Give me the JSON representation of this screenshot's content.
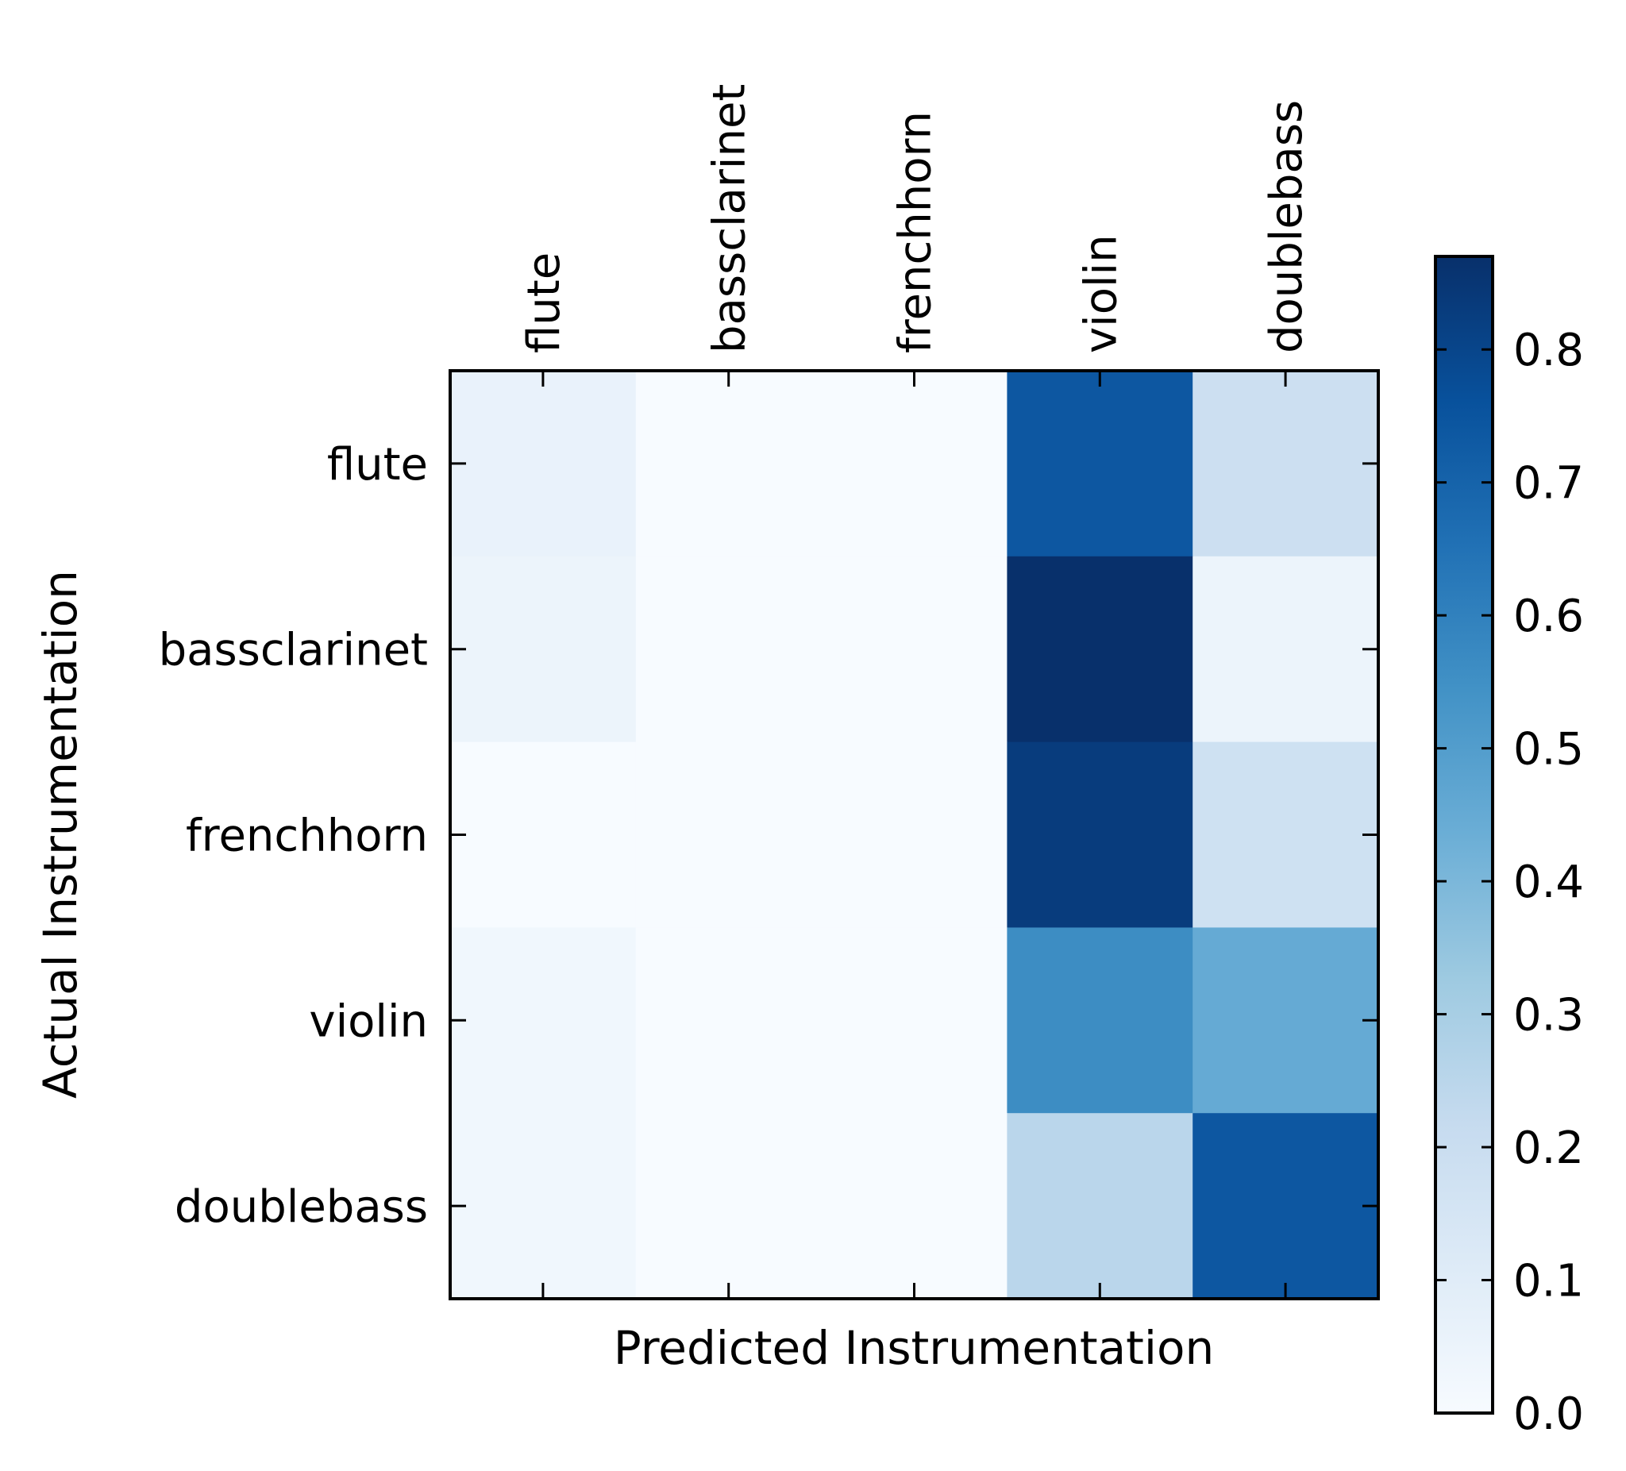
{
  "chart_data": {
    "type": "heatmap",
    "title": "",
    "xlabel": "Predicted Instrumentation",
    "ylabel": "Actual Instrumentation",
    "x_categories": [
      "flute",
      "bassclarinet",
      "frenchhorn",
      "violin",
      "doublebass"
    ],
    "y_categories": [
      "flute",
      "bassclarinet",
      "frenchhorn",
      "violin",
      "doublebass"
    ],
    "values": [
      [
        0.06,
        0.0,
        0.0,
        0.74,
        0.19
      ],
      [
        0.05,
        0.0,
        0.0,
        0.87,
        0.05
      ],
      [
        0.0,
        0.0,
        0.0,
        0.83,
        0.18
      ],
      [
        0.03,
        0.0,
        0.0,
        0.56,
        0.45
      ],
      [
        0.03,
        0.0,
        0.0,
        0.25,
        0.74
      ]
    ],
    "colormap": "Blues",
    "colorbar": {
      "min": 0.0,
      "max": 0.87,
      "ticks": [
        "0.0",
        "0.1",
        "0.2",
        "0.3",
        "0.4",
        "0.5",
        "0.6",
        "0.7",
        "0.8"
      ]
    },
    "x_tick_position": "top",
    "x_tick_rotation": "vertical"
  }
}
